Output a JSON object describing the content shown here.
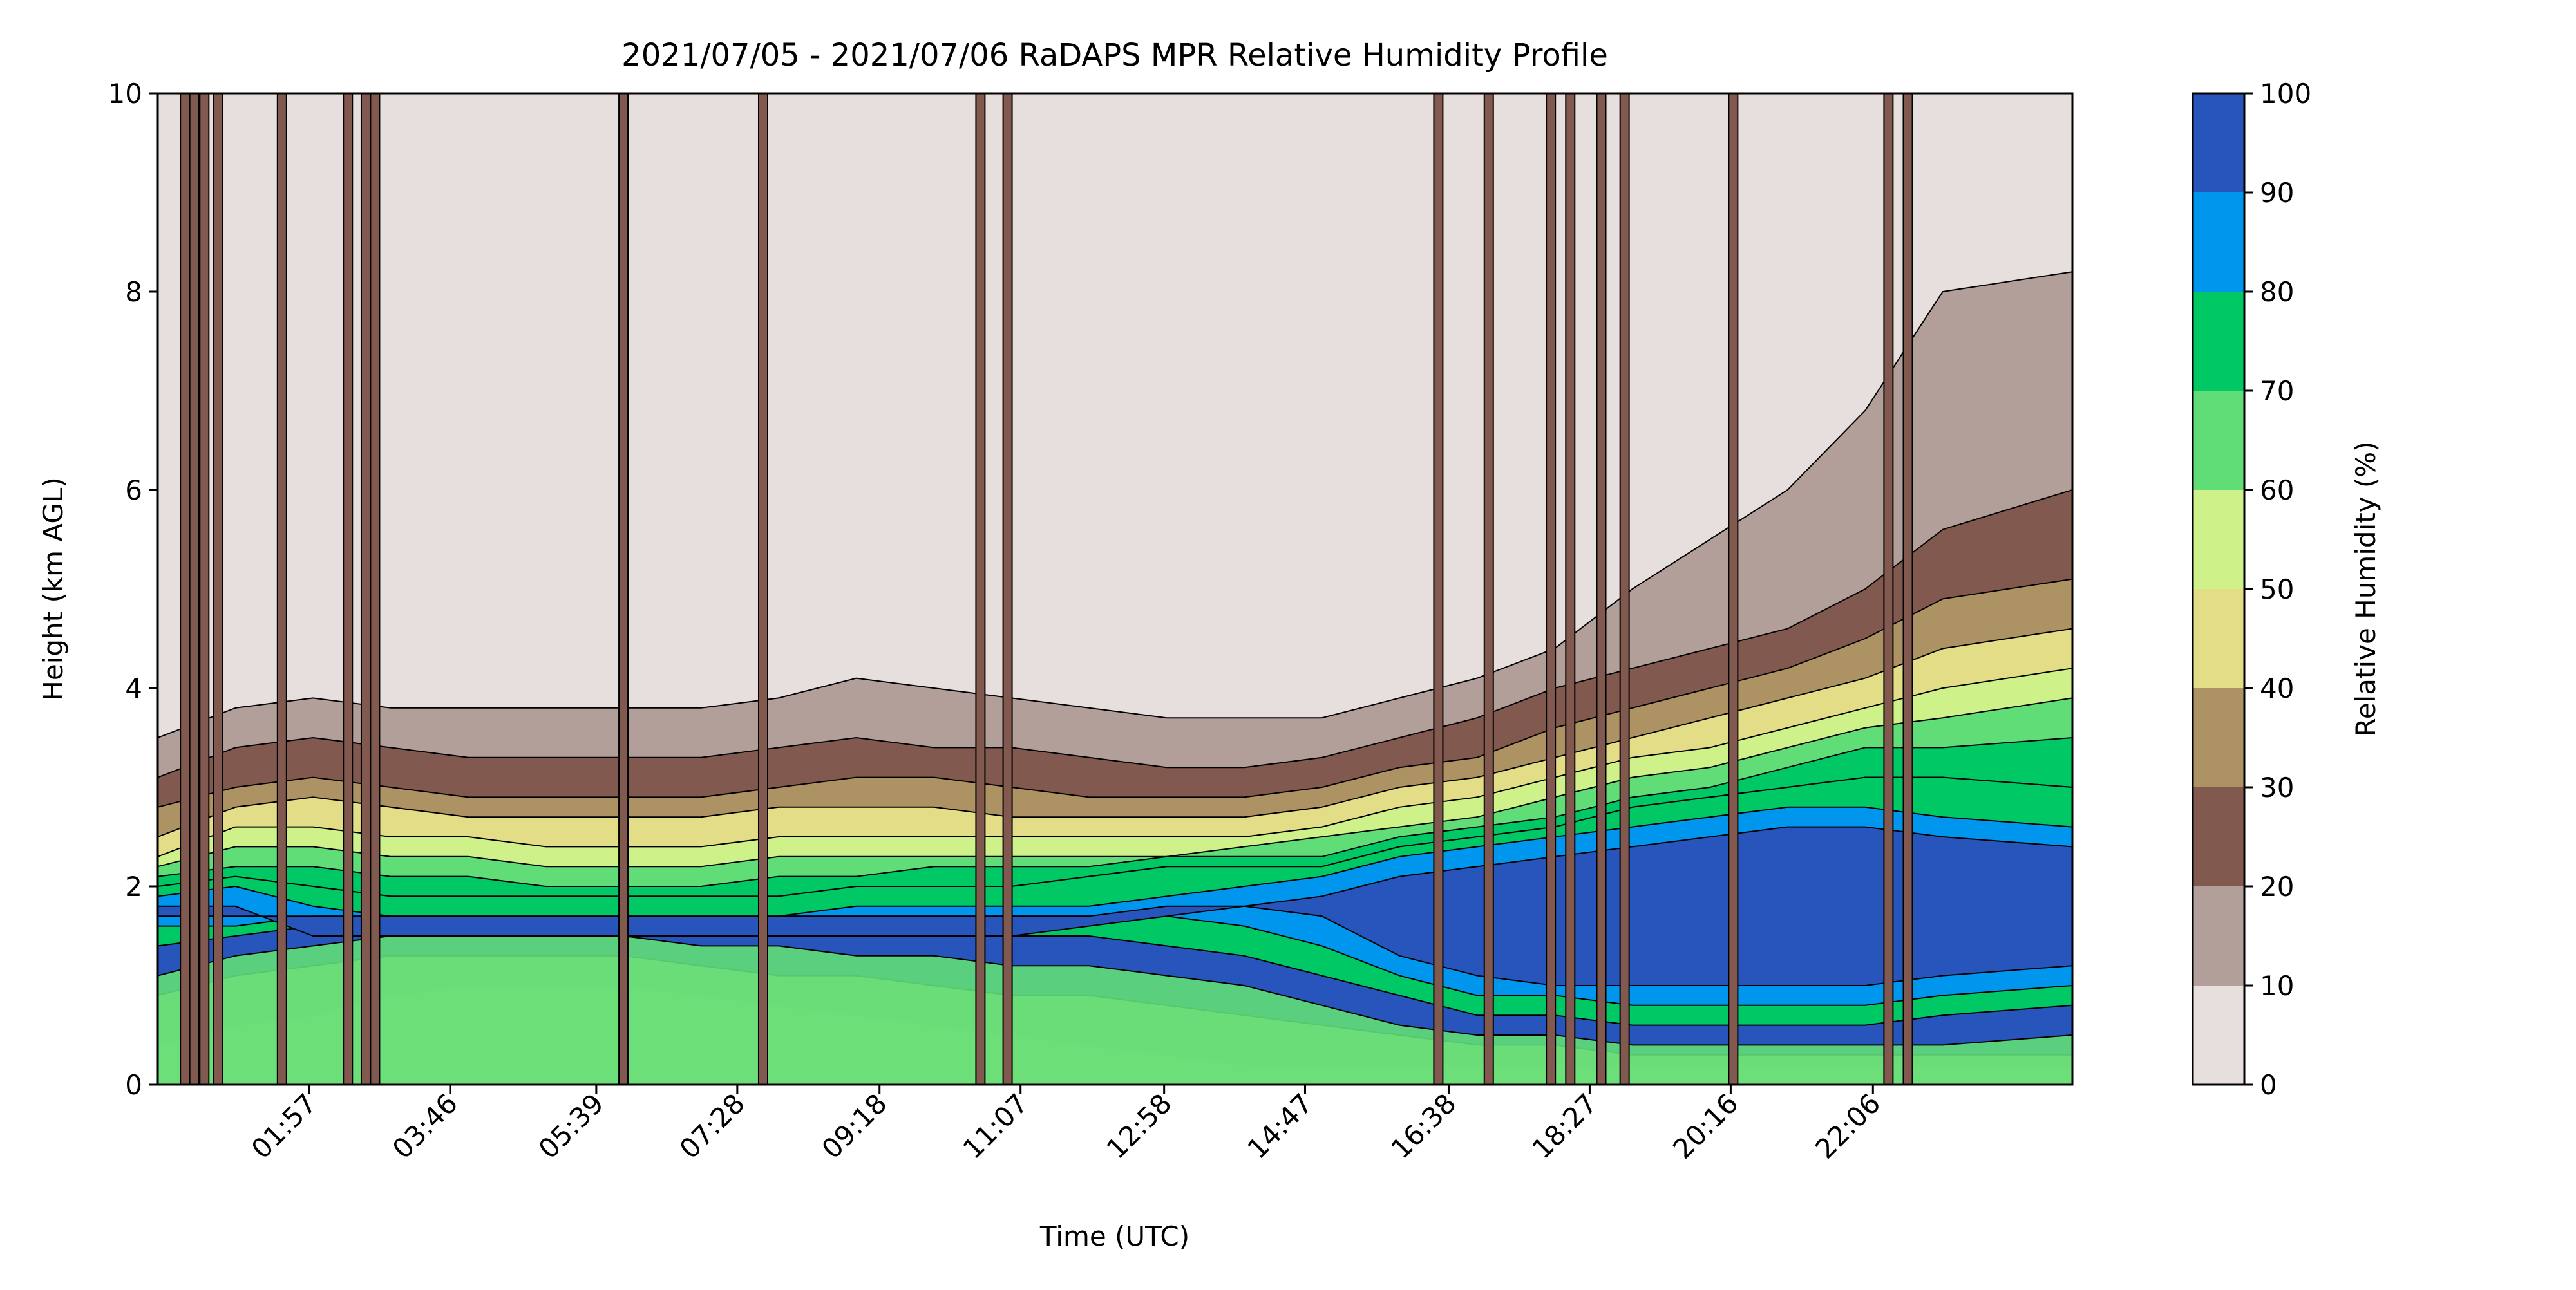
{
  "figure": {
    "background": "#ffffff"
  },
  "chart_data": {
    "type": "heatmap",
    "subtype": "filled-contour",
    "title": "2021/07/05 - 2021/07/06 RaDAPS MPR Relative Humidity Profile",
    "xlabel": "Time (UTC)",
    "ylabel": "Height (km AGL)",
    "x_unit": "hours UTC",
    "xlim": [
      0.0,
      24.67
    ],
    "ylim": [
      0,
      10
    ],
    "x_ticks": [
      {
        "value": 1.95,
        "label": "01:57"
      },
      {
        "value": 3.767,
        "label": "03:46"
      },
      {
        "value": 5.65,
        "label": "05:39"
      },
      {
        "value": 7.467,
        "label": "07:28"
      },
      {
        "value": 9.3,
        "label": "09:18"
      },
      {
        "value": 11.117,
        "label": "11:07"
      },
      {
        "value": 12.967,
        "label": "12:58"
      },
      {
        "value": 14.783,
        "label": "14:47"
      },
      {
        "value": 16.633,
        "label": "16:38"
      },
      {
        "value": 18.45,
        "label": "18:27"
      },
      {
        "value": 20.267,
        "label": "20:16"
      },
      {
        "value": 22.1,
        "label": "22:06"
      }
    ],
    "y_ticks": [
      {
        "value": 0,
        "label": "0"
      },
      {
        "value": 2,
        "label": "2"
      },
      {
        "value": 4,
        "label": "4"
      },
      {
        "value": 6,
        "label": "6"
      },
      {
        "value": 8,
        "label": "8"
      },
      {
        "value": 10,
        "label": "10"
      }
    ],
    "grid": false,
    "colorbar": {
      "label": "Relative Humidity (%)",
      "placement": "right",
      "levels": [
        0,
        10,
        20,
        30,
        40,
        50,
        60,
        70,
        80,
        90,
        100
      ],
      "tick_labels": [
        "0",
        "10",
        "20",
        "30",
        "40",
        "50",
        "60",
        "70",
        "80",
        "90",
        "100"
      ],
      "colors": [
        "#e6dfde",
        "#b39f9a",
        "#82594f",
        "#ad9363",
        "#e3dd87",
        "#cef289",
        "#61dd77",
        "#00c865",
        "#0096ee",
        "#2755bb"
      ]
    },
    "profile_times": [
      0.0,
      1.0,
      2.0,
      3.0,
      4.0,
      5.0,
      6.0,
      7.0,
      8.0,
      9.0,
      10.0,
      11.0,
      12.0,
      13.0,
      14.0,
      15.0,
      16.0,
      17.0,
      18.0,
      19.0,
      20.0,
      21.0,
      22.0,
      23.0,
      24.67
    ],
    "humidity_boundaries": [
      {
        "level": 10,
        "height_km": [
          3.5,
          3.8,
          3.9,
          3.8,
          3.8,
          3.8,
          3.8,
          3.8,
          3.9,
          4.1,
          4.0,
          3.9,
          3.8,
          3.7,
          3.7,
          3.7,
          3.9,
          4.1,
          4.4,
          5.0,
          5.5,
          6.0,
          6.8,
          8.0,
          8.2
        ]
      },
      {
        "level": 20,
        "height_km": [
          3.1,
          3.4,
          3.5,
          3.4,
          3.3,
          3.3,
          3.3,
          3.3,
          3.4,
          3.5,
          3.4,
          3.4,
          3.3,
          3.2,
          3.2,
          3.3,
          3.5,
          3.7,
          4.0,
          4.2,
          4.4,
          4.6,
          5.0,
          5.6,
          6.0
        ]
      },
      {
        "level": 30,
        "height_km": [
          2.8,
          3.0,
          3.1,
          3.0,
          2.9,
          2.9,
          2.9,
          2.9,
          3.0,
          3.1,
          3.1,
          3.0,
          2.9,
          2.9,
          2.9,
          3.0,
          3.2,
          3.3,
          3.6,
          3.8,
          4.0,
          4.2,
          4.5,
          4.9,
          5.1
        ]
      },
      {
        "level": 40,
        "height_km": [
          2.5,
          2.8,
          2.9,
          2.8,
          2.7,
          2.7,
          2.7,
          2.7,
          2.8,
          2.8,
          2.8,
          2.7,
          2.7,
          2.7,
          2.7,
          2.8,
          3.0,
          3.1,
          3.3,
          3.5,
          3.7,
          3.9,
          4.1,
          4.4,
          4.6
        ]
      },
      {
        "level": 50,
        "height_km": [
          2.3,
          2.6,
          2.6,
          2.5,
          2.5,
          2.4,
          2.4,
          2.4,
          2.5,
          2.5,
          2.5,
          2.5,
          2.5,
          2.5,
          2.5,
          2.6,
          2.8,
          2.9,
          3.1,
          3.3,
          3.4,
          3.6,
          3.8,
          4.0,
          4.2
        ]
      },
      {
        "level": 60,
        "height_km": [
          2.2,
          2.4,
          2.4,
          2.3,
          2.3,
          2.2,
          2.2,
          2.2,
          2.3,
          2.3,
          2.3,
          2.3,
          2.3,
          2.3,
          2.4,
          2.5,
          2.6,
          2.7,
          2.9,
          3.1,
          3.2,
          3.4,
          3.6,
          3.7,
          3.9
        ]
      },
      {
        "level": 70,
        "height_km": [
          2.1,
          2.2,
          2.2,
          2.1,
          2.1,
          2.0,
          2.0,
          2.0,
          2.1,
          2.1,
          2.2,
          2.2,
          2.2,
          2.3,
          2.3,
          2.3,
          2.5,
          2.6,
          2.7,
          2.9,
          3.0,
          3.2,
          3.4,
          3.4,
          3.5
        ]
      },
      {
        "level": 80,
        "height_km": [
          2.0,
          2.1,
          2.0,
          1.9,
          1.9,
          1.9,
          1.9,
          1.9,
          1.9,
          2.0,
          2.0,
          2.0,
          2.1,
          2.2,
          2.2,
          2.2,
          2.4,
          2.5,
          2.6,
          2.8,
          2.9,
          3.0,
          3.1,
          3.1,
          3.0
        ]
      },
      {
        "level": 90,
        "height_km": [
          1.9,
          2.0,
          1.8,
          1.7,
          1.7,
          1.7,
          1.7,
          1.7,
          1.7,
          1.8,
          1.8,
          1.8,
          1.8,
          1.9,
          2.0,
          2.1,
          2.3,
          2.4,
          2.5,
          2.6,
          2.7,
          2.8,
          2.8,
          2.7,
          2.6
        ]
      },
      {
        "level": 100,
        "height_km": [
          1.8,
          1.8,
          1.5,
          1.5,
          1.5,
          1.5,
          1.5,
          1.5,
          1.5,
          1.5,
          1.5,
          1.5,
          1.6,
          1.7,
          1.8,
          1.9,
          2.1,
          2.2,
          2.3,
          2.4,
          2.5,
          2.6,
          2.6,
          2.5,
          2.4
        ]
      }
    ],
    "lower_boundaries": [
      {
        "level": 10,
        "height_km": [
          3.4,
          2.9,
          2.9,
          3.0,
          3.1,
          3.1,
          3.1,
          3.1,
          3.0,
          2.9,
          3.0,
          3.1,
          3.1,
          3.2,
          3.3,
          3.3,
          3.1,
          2.9,
          2.7,
          2.5,
          2.3,
          2.1,
          1.9,
          2.0,
          2.1
        ]
      },
      {
        "level": 20,
        "height_km": [
          3.1,
          2.7,
          2.7,
          2.8,
          2.8,
          2.8,
          2.8,
          2.8,
          2.7,
          2.6,
          2.6,
          2.7,
          2.8,
          2.8,
          2.9,
          2.8,
          2.6,
          2.4,
          2.2,
          2.0,
          1.8,
          1.6,
          1.5,
          1.6,
          1.7
        ]
      },
      {
        "level": 30,
        "height_km": [
          0.4,
          0.3,
          0.3,
          0.3,
          0.3,
          0.3,
          0.3,
          0.3,
          0.3,
          0.3,
          0.3,
          0.3,
          0.3,
          0.3,
          0.3,
          0.2,
          0.2,
          0.2,
          0.2,
          0.2,
          0.2,
          0.2,
          0.2,
          0.2,
          0.2
        ]
      },
      {
        "level": 40,
        "height_km": [
          0.4,
          0.6,
          0.7,
          0.9,
          1.0,
          1.0,
          1.0,
          0.9,
          0.8,
          0.7,
          0.6,
          0.5,
          0.4,
          0.3,
          0.2,
          0.2,
          0.2,
          0.2,
          0.2,
          0.2,
          0.2,
          0.2,
          0.2,
          0.2,
          0.2
        ]
      },
      {
        "level": 50,
        "height_km": [
          0.9,
          1.1,
          1.2,
          1.3,
          1.3,
          1.3,
          1.3,
          1.2,
          1.1,
          1.1,
          1.0,
          0.9,
          0.9,
          0.8,
          0.7,
          0.6,
          0.5,
          0.4,
          0.4,
          0.3,
          0.3,
          0.3,
          0.3,
          0.3,
          0.3
        ]
      },
      {
        "level": 60,
        "height_km": [
          1.1,
          1.3,
          1.4,
          1.5,
          1.5,
          1.5,
          1.5,
          1.4,
          1.4,
          1.3,
          1.3,
          1.2,
          1.2,
          1.1,
          1.0,
          0.8,
          0.6,
          0.5,
          0.5,
          0.4,
          0.4,
          0.4,
          0.4,
          0.4,
          0.5
        ]
      },
      {
        "level": 70,
        "height_km": [
          1.4,
          1.5,
          1.6,
          1.6,
          1.6,
          1.6,
          1.6,
          1.6,
          1.6,
          1.6,
          1.6,
          1.5,
          1.5,
          1.4,
          1.3,
          1.1,
          0.9,
          0.7,
          0.7,
          0.6,
          0.6,
          0.6,
          0.6,
          0.7,
          0.8
        ]
      },
      {
        "level": 80,
        "height_km": [
          1.6,
          1.6,
          1.7,
          1.7,
          1.7,
          1.7,
          1.7,
          1.7,
          1.7,
          1.7,
          1.7,
          1.7,
          1.7,
          1.7,
          1.6,
          1.4,
          1.1,
          0.9,
          0.9,
          0.8,
          0.8,
          0.8,
          0.8,
          0.9,
          1.0
        ]
      },
      {
        "level": 90,
        "height_km": [
          1.7,
          1.7,
          1.7,
          1.7,
          1.7,
          1.7,
          1.7,
          1.7,
          1.7,
          1.7,
          1.7,
          1.7,
          1.7,
          1.8,
          1.8,
          1.7,
          1.3,
          1.1,
          1.0,
          1.0,
          1.0,
          1.0,
          1.0,
          1.1,
          1.2
        ]
      }
    ],
    "cloud_spikes_times": [
      0.35,
      0.47,
      0.6,
      0.78,
      1.6,
      2.45,
      2.68,
      2.8,
      6.0,
      7.8,
      10.6,
      10.95,
      16.5,
      17.15,
      17.95,
      18.2,
      18.6,
      18.9,
      20.3,
      22.3,
      22.55
    ]
  }
}
